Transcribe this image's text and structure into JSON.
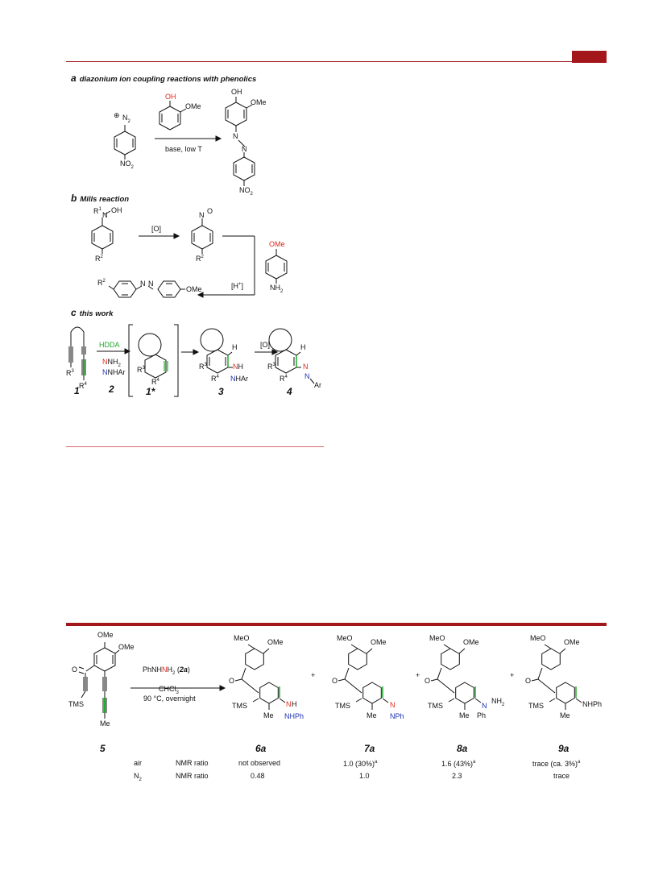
{
  "panel_a": {
    "letter": "a",
    "title": "diazonium ion coupling reactions with phenolics",
    "diazo_plus": "⊕",
    "diazo_n2": "N",
    "diazo_sub2": "2",
    "nitro1": "NO",
    "nitro1_sub": "2",
    "reagent_oh": "OH",
    "reagent_ome": "OMe",
    "conditions": "base, low T",
    "product_oh": "OH",
    "product_ome": "OMe",
    "product_n1": "N",
    "product_n2": "N",
    "product_no2": "NO",
    "product_no2_sub": "2"
  },
  "panel_b": {
    "letter": "b",
    "title": "Mills reaction",
    "r1": "R",
    "r1_sup": "1",
    "n_oh": "N",
    "oh": "OH",
    "r2a": "R",
    "r2a_sup": "2",
    "oxidant": "[O]",
    "nitroso_n": "N",
    "nitroso_o": "O",
    "r2b": "R",
    "r2b_sup": "2",
    "ome": "OMe",
    "nh2": "NH",
    "nh2_sub": "2",
    "acid": "[H",
    "acid_sup": "+",
    "acid_close": "]",
    "prod_r2": "R",
    "prod_r2_sup": "2",
    "prod_n1": "N",
    "prod_n2": "N",
    "prod_ome": "OMe"
  },
  "panel_c": {
    "letter": "c",
    "title": "this work",
    "hdda": "HDDA",
    "nh2": "NH",
    "nh2_sub": "2",
    "nhar": "NHAr",
    "r3": "R",
    "r3_sup": "3",
    "r4": "R",
    "r4_sup": "4",
    "c2_num": "2",
    "c1_num": "1",
    "c1star_num": "1*",
    "int_r3": "R",
    "int_r3_sup": "3",
    "int_r4": "R",
    "int_r4_sup": "4",
    "p3_h": "H",
    "p3_nh": "NH",
    "p3_nhar": "NHAr",
    "p3_r3": "R",
    "p3_r3_sup": "3",
    "p3_r4": "R",
    "p3_r4_sup": "4",
    "p3_num": "3",
    "oxidant": "[O]",
    "p4_h": "H",
    "p4_n1": "N",
    "p4_n2": "N",
    "p4_ar": "Ar",
    "p4_r3": "R",
    "p4_r3_sup": "3",
    "p4_r4": "R",
    "p4_r4_sup": "4",
    "p4_num": "4"
  },
  "scheme2": {
    "sm_ome1": "OMe",
    "sm_ome2": "OMe",
    "sm_o": "O",
    "sm_tms": "TMS",
    "sm_me": "Me",
    "sm_num": "5",
    "reagent_pre": "PhN",
    "reagent_h": "H",
    "reagent_n": "N",
    "reagent_h2": "H",
    "reagent_sub": "2",
    "reagent_open": " (",
    "reagent_num": "2a",
    "reagent_close": ")",
    "solvent": "CHCl",
    "solvent_sub": "3",
    "temp": "90 °C, overnight",
    "plus": "+",
    "products": [
      {
        "num": "6a",
        "ome1": "MeO",
        "ome2": "OMe",
        "o": "O",
        "tms": "TMS",
        "me": "Me",
        "n1": "N",
        "h1": "H",
        "n2": "NHPh"
      },
      {
        "num": "7a",
        "ome1": "MeO",
        "ome2": "OMe",
        "o": "O",
        "tms": "TMS",
        "me": "Me",
        "n1": "N",
        "n2": "NPh"
      },
      {
        "num": "8a",
        "ome1": "MeO",
        "ome2": "OMe",
        "o": "O",
        "tms": "TMS",
        "me": "Me",
        "n1": "N",
        "nh2": "NH",
        "nh2_sub": "2",
        "ph": "Ph"
      },
      {
        "num": "9a",
        "ome1": "MeO",
        "ome2": "OMe",
        "o": "O",
        "tms": "TMS",
        "me": "Me",
        "nhph": "NHPh"
      }
    ],
    "table": {
      "rows": [
        {
          "cond": "air",
          "cond_sub": "",
          "metric": "NMR ratio",
          "v6a": "not observed",
          "v7a": "1.0 (30%)",
          "v7a_sup": "a",
          "v8a": "1.6 (43%)",
          "v8a_sup": "a",
          "v9a": "trace (ca. 3%)",
          "v9a_sup": "a"
        },
        {
          "cond": "N",
          "cond_sub": "2",
          "metric": "NMR ratio",
          "v6a": "0.48",
          "v7a": "1.0",
          "v8a": "2.3",
          "v9a": "trace"
        }
      ]
    }
  }
}
